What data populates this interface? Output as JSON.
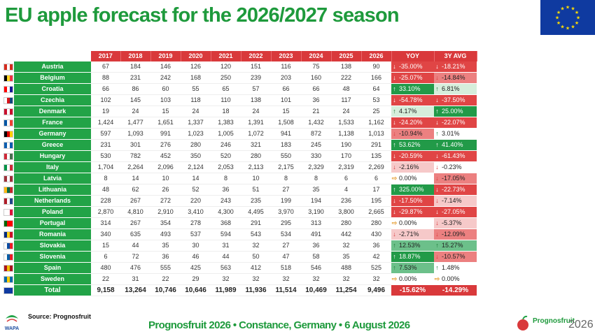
{
  "title": "EU apple forecast for the 2026/2027 season",
  "colors": {
    "green": "#22a347",
    "red": "#d9393b",
    "strong_neg": "#e04545",
    "mid_neg": "#ec8080",
    "light_neg": "#f6c9c9",
    "strong_pos": "#229a48",
    "mid_pos": "#6cc08a",
    "light_pos": "#d6eedb",
    "neutral": "#ffffff"
  },
  "headers": [
    "2017",
    "2018",
    "2019",
    "2020",
    "2021",
    "2022",
    "2023",
    "2024",
    "2025",
    "2026",
    "YOY",
    "3Y AVG"
  ],
  "rows": [
    {
      "country": "Austria",
      "flag": [
        "#d52b1e",
        "#ffffff",
        "#d52b1e"
      ],
      "values": [
        "67",
        "184",
        "146",
        "126",
        "120",
        "151",
        "116",
        "75",
        "138",
        "90"
      ],
      "yoy": "-35.00%",
      "yoy_dir": "down",
      "yoy_c": "strong_neg",
      "avg": "-18.21%",
      "avg_dir": "down",
      "avg_c": "strong_neg"
    },
    {
      "country": "Belgium",
      "flag": [
        "#000000",
        "#fdda24",
        "#ef3340"
      ],
      "values": [
        "88",
        "231",
        "242",
        "168",
        "250",
        "239",
        "203",
        "160",
        "222",
        "166"
      ],
      "yoy": "-25.07%",
      "yoy_dir": "down",
      "yoy_c": "strong_neg",
      "avg": "-14.84%",
      "avg_dir": "down",
      "avg_c": "mid_neg"
    },
    {
      "country": "Croatia",
      "flag": [
        "#ff0000",
        "#ffffff",
        "#171796"
      ],
      "values": [
        "66",
        "86",
        "60",
        "55",
        "65",
        "57",
        "66",
        "66",
        "48",
        "64"
      ],
      "yoy": "33.10%",
      "yoy_dir": "up",
      "yoy_c": "strong_pos",
      "avg": "6.81%",
      "avg_dir": "up",
      "avg_c": "light_pos"
    },
    {
      "country": "Czechia",
      "flag": [
        "#ffffff",
        "#d7141a",
        "#11457e"
      ],
      "values": [
        "102",
        "145",
        "103",
        "118",
        "110",
        "138",
        "101",
        "36",
        "117",
        "53"
      ],
      "yoy": "-54.78%",
      "yoy_dir": "down",
      "yoy_c": "strong_neg",
      "avg": "-37.50%",
      "avg_dir": "down",
      "avg_c": "strong_neg"
    },
    {
      "country": "Denmark",
      "flag": [
        "#c8102e",
        "#ffffff",
        "#c8102e"
      ],
      "values": [
        "19",
        "24",
        "15",
        "24",
        "18",
        "24",
        "15",
        "21",
        "24",
        "25"
      ],
      "yoy": "4.17%",
      "yoy_dir": "up",
      "yoy_c": "light_pos",
      "avg": "25.00%",
      "avg_dir": "up",
      "avg_c": "strong_pos"
    },
    {
      "country": "France",
      "flag": [
        "#0055a4",
        "#ffffff",
        "#ef4135"
      ],
      "values": [
        "1,424",
        "1,477",
        "1,651",
        "1,337",
        "1,383",
        "1,391",
        "1,508",
        "1,432",
        "1,533",
        "1,162"
      ],
      "yoy": "-24.20%",
      "yoy_dir": "down",
      "yoy_c": "strong_neg",
      "avg": "-22.07%",
      "avg_dir": "down",
      "avg_c": "strong_neg"
    },
    {
      "country": "Germany",
      "flag": [
        "#000000",
        "#dd0000",
        "#ffce00"
      ],
      "values": [
        "597",
        "1,093",
        "991",
        "1,023",
        "1,005",
        "1,072",
        "941",
        "872",
        "1,138",
        "1,013"
      ],
      "yoy": "-10.94%",
      "yoy_dir": "down",
      "yoy_c": "mid_neg",
      "avg": "3.01%",
      "avg_dir": "up",
      "avg_c": "neutral"
    },
    {
      "country": "Greece",
      "flag": [
        "#0d5eaf",
        "#ffffff",
        "#0d5eaf"
      ],
      "values": [
        "231",
        "301",
        "276",
        "280",
        "246",
        "321",
        "183",
        "245",
        "190",
        "291"
      ],
      "yoy": "53.62%",
      "yoy_dir": "up",
      "yoy_c": "strong_pos",
      "avg": "41.40%",
      "avg_dir": "up",
      "avg_c": "strong_pos"
    },
    {
      "country": "Hungary",
      "flag": [
        "#ce2939",
        "#ffffff",
        "#477050"
      ],
      "values": [
        "530",
        "782",
        "452",
        "350",
        "520",
        "280",
        "550",
        "330",
        "170",
        "135"
      ],
      "yoy": "-20.59%",
      "yoy_dir": "down",
      "yoy_c": "strong_neg",
      "avg": "-61.43%",
      "avg_dir": "down",
      "avg_c": "strong_neg"
    },
    {
      "country": "Italy",
      "flag": [
        "#009246",
        "#ffffff",
        "#ce2b37"
      ],
      "values": [
        "1,704",
        "2,264",
        "2,096",
        "2,124",
        "2,053",
        "2,113",
        "2,175",
        "2,329",
        "2,319",
        "2,269"
      ],
      "yoy": "-2.16%",
      "yoy_dir": "down",
      "yoy_c": "light_neg",
      "avg": "-0.23%",
      "avg_dir": "down",
      "avg_c": "neutral"
    },
    {
      "country": "Latvia",
      "flag": [
        "#9e3039",
        "#ffffff",
        "#9e3039"
      ],
      "values": [
        "8",
        "14",
        "10",
        "14",
        "8",
        "10",
        "8",
        "8",
        "6",
        "6"
      ],
      "yoy": "0.00%",
      "yoy_dir": "flat",
      "yoy_c": "neutral",
      "avg": "-17.05%",
      "avg_dir": "down",
      "avg_c": "mid_neg"
    },
    {
      "country": "Lithuania",
      "flag": [
        "#fdb913",
        "#006a44",
        "#c1272d"
      ],
      "values": [
        "48",
        "62",
        "26",
        "52",
        "36",
        "51",
        "27",
        "35",
        "4",
        "17"
      ],
      "yoy": "325.00%",
      "yoy_dir": "up",
      "yoy_c": "strong_pos",
      "avg": "-22.73%",
      "avg_dir": "down",
      "avg_c": "strong_neg"
    },
    {
      "country": "Netherlands",
      "flag": [
        "#ae1c28",
        "#ffffff",
        "#21468b"
      ],
      "values": [
        "228",
        "267",
        "272",
        "220",
        "243",
        "235",
        "199",
        "194",
        "236",
        "195"
      ],
      "yoy": "-17.50%",
      "yoy_dir": "down",
      "yoy_c": "strong_neg",
      "avg": "-7.14%",
      "avg_dir": "down",
      "avg_c": "light_neg"
    },
    {
      "country": "Poland",
      "flag": [
        "#ffffff",
        "#ffffff",
        "#dc143c"
      ],
      "values": [
        "2,870",
        "4,810",
        "2,910",
        "3,410",
        "4,300",
        "4,495",
        "3,970",
        "3,190",
        "3,800",
        "2,665"
      ],
      "yoy": "-29.87%",
      "yoy_dir": "down",
      "yoy_c": "strong_neg",
      "avg": "-27.05%",
      "avg_dir": "down",
      "avg_c": "strong_neg"
    },
    {
      "country": "Portugal",
      "flag": [
        "#006600",
        "#ff0000",
        "#ff0000"
      ],
      "values": [
        "314",
        "267",
        "354",
        "278",
        "368",
        "291",
        "295",
        "313",
        "280",
        "280"
      ],
      "yoy": "0.00%",
      "yoy_dir": "flat",
      "yoy_c": "neutral",
      "avg": "-5.37%",
      "avg_dir": "down",
      "avg_c": "light_neg"
    },
    {
      "country": "Romania",
      "flag": [
        "#002b7f",
        "#fcd116",
        "#ce1126"
      ],
      "values": [
        "340",
        "635",
        "493",
        "537",
        "594",
        "543",
        "534",
        "491",
        "442",
        "430"
      ],
      "yoy": "-2.71%",
      "yoy_dir": "down",
      "yoy_c": "light_neg",
      "avg": "-12.09%",
      "avg_dir": "down",
      "avg_c": "mid_neg"
    },
    {
      "country": "Slovakia",
      "flag": [
        "#ffffff",
        "#0b4ea2",
        "#ee1c25"
      ],
      "values": [
        "15",
        "44",
        "35",
        "30",
        "31",
        "32",
        "27",
        "36",
        "32",
        "36"
      ],
      "yoy": "12.53%",
      "yoy_dir": "up",
      "yoy_c": "mid_pos",
      "avg": "15.27%",
      "avg_dir": "up",
      "avg_c": "mid_pos"
    },
    {
      "country": "Slovenia",
      "flag": [
        "#ffffff",
        "#005da4",
        "#ed1c24"
      ],
      "values": [
        "6",
        "72",
        "36",
        "46",
        "44",
        "50",
        "47",
        "58",
        "35",
        "42"
      ],
      "yoy": "18.87%",
      "yoy_dir": "up",
      "yoy_c": "strong_pos",
      "avg": "-10.57%",
      "avg_dir": "down",
      "avg_c": "mid_neg"
    },
    {
      "country": "Spain",
      "flag": [
        "#aa151b",
        "#f1bf00",
        "#aa151b"
      ],
      "values": [
        "480",
        "476",
        "555",
        "425",
        "563",
        "412",
        "518",
        "546",
        "488",
        "525"
      ],
      "yoy": "7.53%",
      "yoy_dir": "up",
      "yoy_c": "mid_pos",
      "avg": "1.48%",
      "avg_dir": "up",
      "avg_c": "neutral"
    },
    {
      "country": "Sweden",
      "flag": [
        "#006aa7",
        "#fecc00",
        "#006aa7"
      ],
      "values": [
        "22",
        "31",
        "22",
        "29",
        "32",
        "32",
        "32",
        "32",
        "32",
        "32"
      ],
      "yoy": "0.00%",
      "yoy_dir": "flat",
      "yoy_c": "neutral",
      "avg": "0.00%",
      "avg_dir": "flat",
      "avg_c": "neutral"
    }
  ],
  "total": {
    "country": "Total",
    "values": [
      "9,158",
      "13,264",
      "10,746",
      "10,646",
      "11,989",
      "11,936",
      "11,514",
      "10,469",
      "11,254",
      "9,496"
    ],
    "yoy": "-15.62%",
    "avg": "-14.29%"
  },
  "source": "Source: Prognosfruit",
  "footer": "Prognosfruit 2026 • Constance, Germany • 6 August 2026",
  "logo_name": "Prognosfruit",
  "logo_year": "2026",
  "wapa_label": "WAPA"
}
